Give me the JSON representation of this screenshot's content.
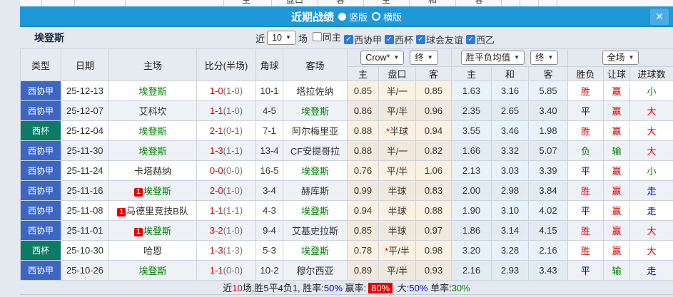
{
  "icons": {
    "check": "✓",
    "caret": "▼",
    "close": "✕"
  },
  "background_header": {
    "labels": [
      "主",
      "盘口",
      "客",
      "主",
      "和",
      "客"
    ]
  },
  "titlebar": {
    "title": "近期战绩",
    "vertical_label": "竖版",
    "horizontal_label": "横版",
    "bar_color": "#1e98d7"
  },
  "filterbar": {
    "team": "埃登斯",
    "near_label": "近",
    "games_count": "10",
    "games_label": "场",
    "checkboxes": [
      {
        "label": "同主",
        "checked": false
      },
      {
        "label": "西协甲",
        "checked": true
      },
      {
        "label": "西杯",
        "checked": true
      },
      {
        "label": "球会友谊",
        "checked": true
      },
      {
        "label": "西乙",
        "checked": true
      }
    ]
  },
  "table_header": {
    "static_cols": [
      "类型",
      "日期",
      "主场",
      "比分(半场)",
      "角球",
      "客场"
    ],
    "groups": [
      {
        "selects": [
          "Crow*",
          "终"
        ],
        "cols": [
          "主",
          "盘口",
          "客"
        ]
      },
      {
        "selects": [
          "胜平负均值",
          "终"
        ],
        "cols": [
          "主",
          "和",
          "客"
        ]
      },
      {
        "selects": [
          "全场"
        ],
        "cols": [
          "胜负",
          "让球",
          "进球数"
        ]
      }
    ]
  },
  "colors": {
    "league": {
      "西协甲": "#3b66c4",
      "西杯": "#0c7c66"
    },
    "result": {
      "胜": "#dd0000",
      "平": "#0000dd",
      "负": "#008000",
      "赢": "#dd0000",
      "输": "#008000",
      "走": "#0000dd",
      "大": "#dd0000",
      "小": "#008000"
    },
    "team_green": "#008000",
    "score_red": "#dd0000",
    "badge_red": "#e60000"
  },
  "rows": [
    {
      "league": "西协甲",
      "date": "25-12-13",
      "home": "埃登斯",
      "home_green": true,
      "home_badge": "",
      "score": "1-0",
      "half": "(1-0)",
      "corner": "10-1",
      "away": "塔拉佐纳",
      "away_green": false,
      "away_badge": "",
      "odds_home": "0.85",
      "handicap": "半/一",
      "handicap_star": false,
      "odds_away": "0.85",
      "mean_home": "1.63",
      "mean_draw": "3.16",
      "mean_away": "5.85",
      "result": "胜",
      "handicap_result": "赢",
      "goals": "小"
    },
    {
      "league": "西协甲",
      "date": "25-12-07",
      "home": "艾科坎",
      "home_green": false,
      "home_badge": "",
      "score": "1-1",
      "half": "(1-0)",
      "corner": "4-5",
      "away": "埃登斯",
      "away_green": true,
      "away_badge": "",
      "odds_home": "0.86",
      "handicap": "平/半",
      "handicap_star": false,
      "odds_away": "0.96",
      "mean_home": "2.35",
      "mean_draw": "2.65",
      "mean_away": "3.40",
      "result": "平",
      "handicap_result": "赢",
      "goals": "大"
    },
    {
      "league": "西杯",
      "date": "25-12-04",
      "home": "埃登斯",
      "home_green": true,
      "home_badge": "",
      "score": "2-1",
      "half": "(0-1)",
      "corner": "7-1",
      "away": "阿尔梅里亚",
      "away_green": false,
      "away_badge": "",
      "odds_home": "0.88",
      "handicap": "半球",
      "handicap_star": true,
      "odds_away": "0.94",
      "mean_home": "3.55",
      "mean_draw": "3.46",
      "mean_away": "1.98",
      "result": "胜",
      "handicap_result": "赢",
      "goals": "大"
    },
    {
      "league": "西协甲",
      "date": "25-11-30",
      "home": "埃登斯",
      "home_green": true,
      "home_badge": "",
      "score": "1-3",
      "half": "(1-1)",
      "corner": "13-4",
      "away": "CF安提哥拉",
      "away_green": false,
      "away_badge": "",
      "odds_home": "0.88",
      "handicap": "半/一",
      "handicap_star": false,
      "odds_away": "0.82",
      "mean_home": "1.66",
      "mean_draw": "3.32",
      "mean_away": "5.07",
      "result": "负",
      "handicap_result": "输",
      "goals": "大"
    },
    {
      "league": "西协甲",
      "date": "25-11-24",
      "home": "卡塔赫纳",
      "home_green": false,
      "home_badge": "",
      "score": "0-0",
      "half": "(0-0)",
      "corner": "16-5",
      "away": "埃登斯",
      "away_green": true,
      "away_badge": "",
      "odds_home": "0.76",
      "handicap": "平/半",
      "handicap_star": false,
      "odds_away": "1.06",
      "mean_home": "2.13",
      "mean_draw": "3.03",
      "mean_away": "3.39",
      "result": "平",
      "handicap_result": "赢",
      "goals": "小"
    },
    {
      "league": "西协甲",
      "date": "25-11-16",
      "home": "埃登斯",
      "home_green": true,
      "home_badge": "1",
      "score": "2-0",
      "half": "(1-0)",
      "corner": "3-4",
      "away": "赫库斯",
      "away_green": false,
      "away_badge": "",
      "odds_home": "0.99",
      "handicap": "半球",
      "handicap_star": false,
      "odds_away": "0.83",
      "mean_home": "2.00",
      "mean_draw": "2.98",
      "mean_away": "3.84",
      "result": "胜",
      "handicap_result": "赢",
      "goals": "走"
    },
    {
      "league": "西协甲",
      "date": "25-11-08",
      "home": "马德里竞技B队",
      "home_green": false,
      "home_badge": "1",
      "score": "1-1",
      "half": "(1-1)",
      "corner": "4-3",
      "away": "埃登斯",
      "away_green": true,
      "away_badge": "",
      "odds_home": "0.94",
      "handicap": "半球",
      "handicap_star": false,
      "odds_away": "0.88",
      "mean_home": "1.90",
      "mean_draw": "3.10",
      "mean_away": "4.02",
      "result": "平",
      "handicap_result": "赢",
      "goals": "走"
    },
    {
      "league": "西协甲",
      "date": "25-11-01",
      "home": "埃登斯",
      "home_green": true,
      "home_badge": "1",
      "score": "3-2",
      "half": "(1-0)",
      "corner": "9-4",
      "away": "艾基史拉斯",
      "away_green": false,
      "away_badge": "",
      "odds_home": "0.85",
      "handicap": "半球",
      "handicap_star": false,
      "odds_away": "0.97",
      "mean_home": "1.86",
      "mean_draw": "3.14",
      "mean_away": "4.15",
      "result": "胜",
      "handicap_result": "赢",
      "goals": "大"
    },
    {
      "league": "西杯",
      "date": "25-10-30",
      "home": "哈恩",
      "home_green": false,
      "home_badge": "",
      "score": "1-3",
      "half": "(1-3)",
      "corner": "5-3",
      "away": "埃登斯",
      "away_green": true,
      "away_badge": "",
      "odds_home": "0.78",
      "handicap": "平/半",
      "handicap_star": true,
      "odds_away": "0.98",
      "mean_home": "3.20",
      "mean_draw": "3.28",
      "mean_away": "2.16",
      "result": "胜",
      "handicap_result": "赢",
      "goals": "大"
    },
    {
      "league": "西协甲",
      "date": "25-10-26",
      "home": "埃登斯",
      "home_green": true,
      "home_badge": "",
      "score": "1-1",
      "half": "(0-0)",
      "corner": "10-2",
      "away": "穆尔西亚",
      "away_green": false,
      "away_badge": "",
      "odds_home": "0.89",
      "handicap": "平/半",
      "handicap_star": false,
      "odds_away": "0.93",
      "mean_home": "2.16",
      "mean_draw": "2.93",
      "mean_away": "3.43",
      "result": "平",
      "handicap_result": "输",
      "goals": "走"
    }
  ],
  "summary": {
    "segments": [
      {
        "text": "近",
        "style": "plain"
      },
      {
        "text": "10",
        "style": "red"
      },
      {
        "text": "场,胜5平4负1, 胜率:",
        "style": "plain"
      },
      {
        "text": "50%",
        "style": "blue"
      },
      {
        "text": " 赢率:",
        "style": "plain"
      },
      {
        "text": "80%",
        "style": "badge"
      },
      {
        "text": " 大:",
        "style": "plain"
      },
      {
        "text": "50%",
        "style": "blue"
      },
      {
        "text": " 单率:",
        "style": "plain"
      },
      {
        "text": "30%",
        "style": "green"
      }
    ]
  }
}
